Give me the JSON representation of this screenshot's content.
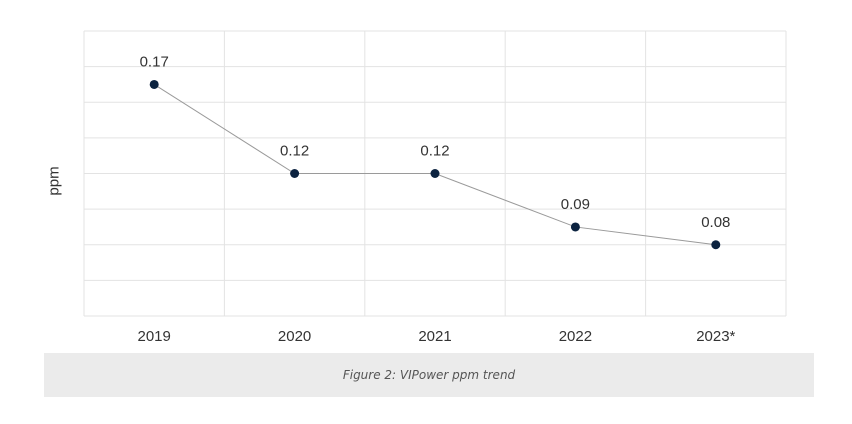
{
  "chart_data": {
    "type": "line",
    "title": "",
    "xlabel": "",
    "ylabel": "ppm",
    "categories": [
      "2019",
      "2020",
      "2021",
      "2022",
      "2023*"
    ],
    "series": [
      {
        "values": [
          0.17,
          0.12,
          0.12,
          0.09,
          0.08
        ]
      }
    ],
    "ylim": [
      0.04,
      0.2
    ],
    "grid": true,
    "legend": "none",
    "colors": {
      "line": "#9a9a9a",
      "marker": "#0c2340",
      "grid": "#e3e3e3",
      "text": "#333333"
    }
  },
  "caption": "Figure 2: VIPower ppm trend"
}
